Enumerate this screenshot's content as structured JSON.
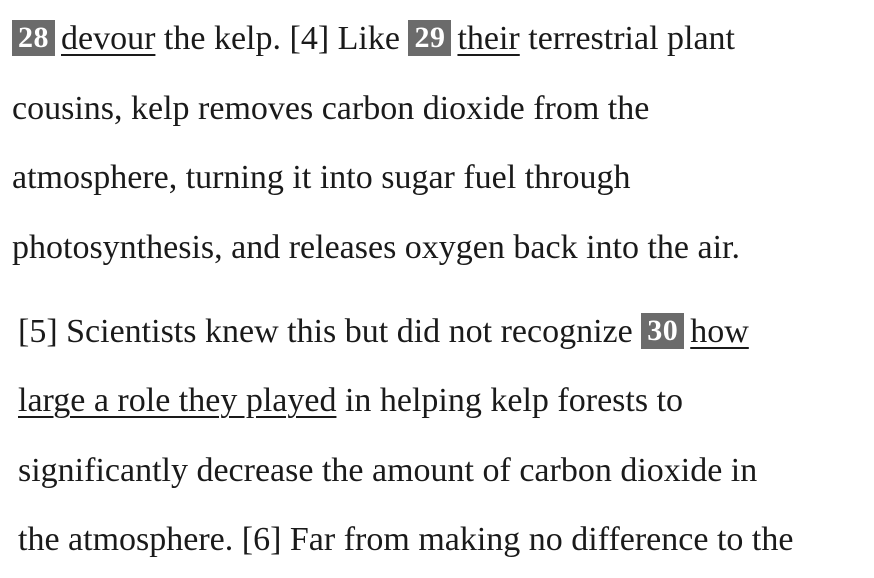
{
  "passage": {
    "line1": {
      "q28": "28",
      "q28_text": "devour",
      "mid": " the kelp. [4] Like ",
      "q29": "29",
      "q29_text": "their",
      "end": " terrestrial plant"
    },
    "line2": "cousins, kelp removes carbon dioxide from the",
    "line3": "atmosphere, turning it into sugar fuel through",
    "line4": "photosynthesis, and releases oxygen back into the air.",
    "line5": {
      "start": "[5] Scientists knew this but did not recognize ",
      "q30": "30",
      "q30_text_a": "how"
    },
    "line6": {
      "q30_text_b": "large a role they played",
      "end": " in helping kelp forests to"
    },
    "line7": "significantly decrease the amount of carbon dioxide in",
    "line8": "the atmosphere. [6] Far from making no difference to the"
  }
}
